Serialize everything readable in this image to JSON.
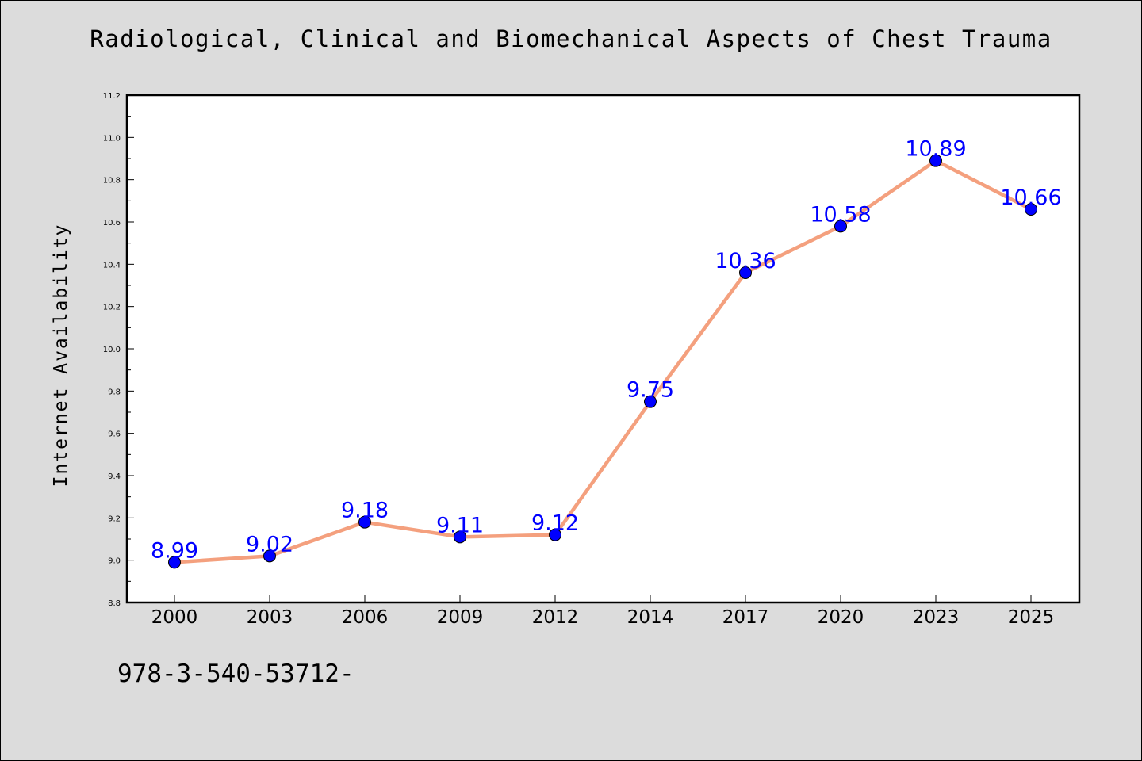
{
  "chart_data": {
    "type": "line",
    "title": "Radiological, Clinical and Biomechanical Aspects of Chest Trauma",
    "xlabel": "",
    "ylabel": "Internet Availability",
    "categories": [
      "2000",
      "2003",
      "2006",
      "2009",
      "2012",
      "2014",
      "2017",
      "2020",
      "2023",
      "2025"
    ],
    "values": [
      8.99,
      9.02,
      9.18,
      9.11,
      9.12,
      9.75,
      10.36,
      10.58,
      10.89,
      10.66
    ],
    "data_labels": [
      "8.99",
      "9.02",
      "9.18",
      "9.11",
      "9.12",
      "9.75",
      "10.36",
      "10.58",
      "10.89",
      "10.66"
    ],
    "ylim": [
      8.8,
      11.2
    ],
    "yticks": [
      "8.8",
      "9.0",
      "9.2",
      "9.4",
      "9.6",
      "9.8",
      "10.0",
      "10.2",
      "10.4",
      "10.6",
      "10.8",
      "11.0",
      "11.2"
    ],
    "grid": false,
    "legend": "none",
    "colors": {
      "line": "#f4a07e",
      "marker": "#0000ff",
      "label": "#0000ff",
      "background": "#dcdcdc",
      "plot_background": "#ffffff"
    }
  },
  "footnote": "978-3-540-53712-"
}
